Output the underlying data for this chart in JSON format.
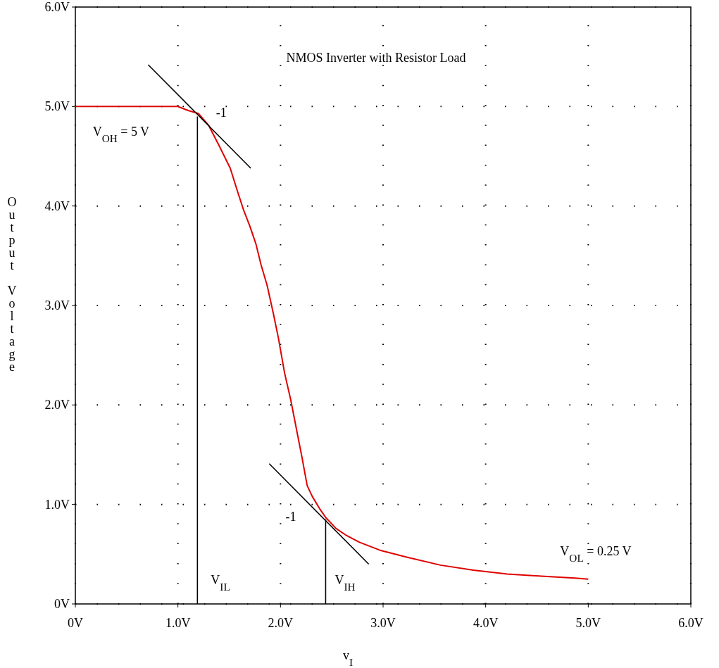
{
  "chart_data": {
    "type": "line",
    "title": "NMOS Inverter with Resistor Load",
    "xlabel": "v$_{I}$",
    "ylabel": "Output Voltage",
    "xlim": [
      0,
      6
    ],
    "ylim": [
      0,
      6
    ],
    "xticks": [
      {
        "value": 0,
        "label": "0V"
      },
      {
        "value": 1,
        "label": "1.0V"
      },
      {
        "value": 2,
        "label": "2.0V"
      },
      {
        "value": 3,
        "label": "3.0V"
      },
      {
        "value": 4,
        "label": "4.0V"
      },
      {
        "value": 5,
        "label": "5.0V"
      },
      {
        "value": 6,
        "label": "6.0V"
      }
    ],
    "yticks": [
      {
        "value": 0,
        "label": "0V"
      },
      {
        "value": 1,
        "label": "1.0V"
      },
      {
        "value": 2,
        "label": "2.0V"
      },
      {
        "value": 3,
        "label": "3.0V"
      },
      {
        "value": 4,
        "label": "4.0V"
      },
      {
        "value": 5,
        "label": "5.0V"
      },
      {
        "value": 6,
        "label": "6.0V"
      }
    ],
    "grid": true,
    "line_style": "solid",
    "marker": "none",
    "series": [
      {
        "color": "#e00000",
        "x": [
          0,
          1.0,
          1.1,
          1.2,
          1.3,
          1.4,
          1.51,
          1.58,
          1.64,
          1.7,
          1.76,
          1.81,
          1.87,
          1.93,
          1.98,
          2.04,
          2.1,
          2.17,
          2.21,
          2.26,
          2.31,
          2.38,
          2.44,
          2.54,
          2.64,
          2.77,
          2.97,
          3.23,
          3.56,
          3.88,
          4.21,
          4.54,
          4.87,
          5.0
        ],
        "values": [
          5.0,
          5.0,
          4.96,
          4.93,
          4.81,
          4.61,
          4.38,
          4.15,
          3.96,
          3.8,
          3.62,
          3.41,
          3.2,
          2.92,
          2.67,
          2.32,
          2.05,
          1.68,
          1.47,
          1.19,
          1.08,
          0.96,
          0.87,
          0.76,
          0.69,
          0.62,
          0.54,
          0.47,
          0.39,
          0.34,
          0.3,
          0.28,
          0.26,
          0.25
        ]
      },
      {
        "color": "#000000",
        "x": [
          0.71,
          1.71
        ],
        "values": [
          5.42,
          4.38
        ]
      },
      {
        "color": "#000000",
        "x": [
          1.89,
          2.86
        ],
        "values": [
          1.41,
          0.4
        ]
      },
      {
        "color": "#000000",
        "x": [
          1.19,
          1.19
        ],
        "values": [
          0,
          4.9
        ]
      },
      {
        "color": "#000000",
        "x": [
          2.44,
          2.44
        ],
        "values": [
          0,
          0.85
        ]
      }
    ],
    "annotations": [
      {
        "text": "-1",
        "x": 1.2,
        "y": 4.93
      },
      {
        "text": "-1",
        "x": 2.44,
        "y": 0.87
      },
      {
        "text": "V$_{OH}$ = 5 V",
        "x": 1.0,
        "y": 5.0
      },
      {
        "text": "V$_{IL}$",
        "x": 1.19,
        "y": 0
      },
      {
        "text": "V$_{IH}$",
        "x": 2.44,
        "y": 0
      },
      {
        "text": "V$_{OL}$ = 0.25 V",
        "x": 5.0,
        "y": 0.25
      }
    ]
  }
}
